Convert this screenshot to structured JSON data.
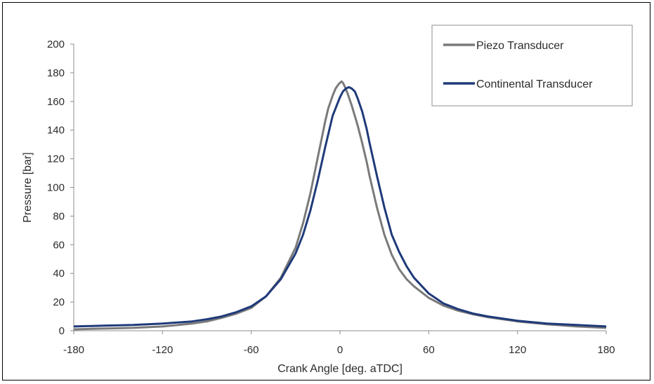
{
  "chart_data": {
    "type": "line",
    "xlabel": "Crank Angle [deg. aTDC]",
    "ylabel": "Pressure [bar]",
    "xlim": [
      -180,
      180
    ],
    "ylim": [
      0,
      200
    ],
    "xticks": [
      -180,
      -120,
      -60,
      0,
      60,
      120,
      180
    ],
    "yticks": [
      0,
      20,
      40,
      60,
      80,
      100,
      120,
      140,
      160,
      180,
      200
    ],
    "xtick_labels": [
      "-180",
      "-120",
      "-60",
      "0",
      "60",
      "120",
      "180"
    ],
    "ytick_labels": [
      "0",
      "20",
      "40",
      "60",
      "80",
      "100",
      "120",
      "140",
      "160",
      "180",
      "200"
    ],
    "grid": false,
    "legend_position": "top-right",
    "series": [
      {
        "name": "Piezo Transducer",
        "color": "#7a7a7a",
        "x": [
          -180,
          -160,
          -140,
          -120,
          -100,
          -90,
          -80,
          -70,
          -60,
          -50,
          -40,
          -30,
          -25,
          -20,
          -15,
          -10,
          -8,
          -5,
          -3,
          -1,
          0,
          1,
          2,
          3,
          5,
          8,
          10,
          12,
          15,
          18,
          20,
          25,
          30,
          35,
          40,
          45,
          50,
          60,
          70,
          80,
          90,
          100,
          120,
          140,
          160,
          180
        ],
        "y": [
          1,
          1.5,
          2,
          3,
          5,
          6.5,
          9,
          12,
          16,
          24,
          37,
          58,
          75,
          96,
          121,
          146,
          155,
          164,
          169,
          172,
          173,
          174,
          173,
          171,
          166,
          157,
          150,
          143,
          131,
          118,
          108,
          86,
          67,
          53,
          43,
          36,
          31,
          23,
          17.5,
          14,
          11.5,
          9.5,
          6.5,
          4.5,
          3,
          2
        ]
      },
      {
        "name": "Continental Transducer",
        "color": "#1f3a7a",
        "x": [
          -180,
          -160,
          -140,
          -120,
          -100,
          -90,
          -80,
          -70,
          -60,
          -50,
          -40,
          -30,
          -25,
          -20,
          -15,
          -10,
          -5,
          0,
          2,
          4,
          6,
          8,
          10,
          12,
          15,
          18,
          20,
          25,
          30,
          35,
          40,
          45,
          50,
          60,
          70,
          80,
          90,
          100,
          120,
          140,
          160,
          180
        ],
        "y": [
          3,
          3.5,
          4,
          5,
          6.5,
          8,
          10,
          13,
          17,
          24,
          36,
          54,
          67,
          84,
          105,
          128,
          150,
          163,
          167,
          169,
          170,
          169,
          167,
          162,
          153,
          141,
          131,
          108,
          86,
          67,
          55,
          45,
          37,
          26,
          19,
          15,
          12,
          10,
          7,
          5,
          4,
          3
        ]
      }
    ]
  }
}
